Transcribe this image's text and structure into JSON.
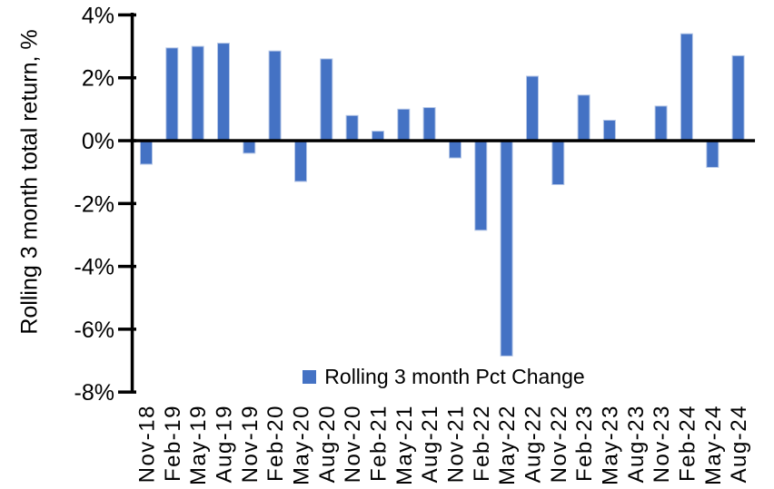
{
  "chart_data": {
    "type": "bar",
    "title": "",
    "xlabel": "",
    "ylabel": "Rolling 3 month total return, %",
    "series_name": "Rolling 3 month Pct Change",
    "legend_position": "bottom-center-inside",
    "grid": false,
    "ylim": [
      -8,
      4
    ],
    "ytick_values": [
      4,
      2,
      0,
      -2,
      -4,
      -6,
      -8
    ],
    "ytick_labels": [
      "4%",
      "2%",
      "0%",
      "-2%",
      "-4%",
      "-6%",
      "-8%"
    ],
    "categories": [
      "Nov-18",
      "Feb-19",
      "May-19",
      "Aug-19",
      "Nov-19",
      "Feb-20",
      "May-20",
      "Aug-20",
      "Nov-20",
      "Feb-21",
      "May-21",
      "Aug-21",
      "Nov-21",
      "Feb-22",
      "May-22",
      "Aug-22",
      "Nov-22",
      "Feb-23",
      "May-23",
      "Aug-23",
      "Nov-23",
      "Feb-24",
      "May-24",
      "Aug-24"
    ],
    "values": [
      -0.75,
      2.95,
      3.0,
      3.1,
      -0.4,
      2.85,
      -1.3,
      2.6,
      0.8,
      0.3,
      1.0,
      1.05,
      -0.55,
      -2.85,
      -6.85,
      2.05,
      -1.4,
      1.45,
      0.65,
      0.0,
      1.1,
      3.4,
      -0.85,
      2.7
    ],
    "bar_color": "#4472C4",
    "bar_border_color": "#B4C6E7",
    "axis_color": "#000000"
  }
}
